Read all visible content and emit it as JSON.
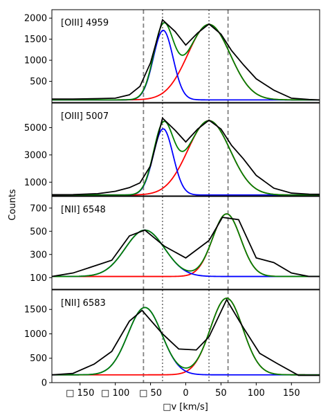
{
  "chart_data": {
    "type": "line",
    "x_label": "□v [km/s]",
    "y_label": "Counts",
    "xlim": [
      -190,
      190
    ],
    "x_ticks": [
      -150,
      -100,
      -50,
      0,
      50,
      100,
      150
    ],
    "x_tick_labels": [
      "□ 150",
      "□ 100",
      "□ 50",
      "0",
      "50",
      "100",
      "150"
    ],
    "vlines_dashed": [
      -60,
      60
    ],
    "vlines_dotted": [
      -33,
      33
    ],
    "series_colors": {
      "data": "#000000",
      "total": "#008000",
      "comp1": "#0000ff",
      "comp2": "#ff0000"
    },
    "panels": [
      {
        "label": "[OIII] 4959",
        "ylim": [
          0,
          2200
        ],
        "yticks": [
          500,
          1000,
          1500,
          2000
        ],
        "baseline": 60,
        "comp1": {
          "amp": 1650,
          "center": -32,
          "sigma": 14
        },
        "comp2": {
          "amp": 1790,
          "center": 33,
          "sigma": 30
        },
        "data": [
          [
            -190,
            80
          ],
          [
            -160,
            80
          ],
          [
            -125,
            90
          ],
          [
            -100,
            100
          ],
          [
            -80,
            180
          ],
          [
            -65,
            380
          ],
          [
            -50,
            940
          ],
          [
            -33,
            1960
          ],
          [
            -15,
            1680
          ],
          [
            0,
            1360
          ],
          [
            17,
            1650
          ],
          [
            33,
            1860
          ],
          [
            50,
            1620
          ],
          [
            65,
            1230
          ],
          [
            82,
            890
          ],
          [
            100,
            560
          ],
          [
            125,
            290
          ],
          [
            150,
            100
          ],
          [
            175,
            70
          ],
          [
            190,
            60
          ]
        ]
      },
      {
        "label": "[OIII] 5007",
        "ylim": [
          0,
          6800
        ],
        "yticks": [
          1000,
          3000,
          5000
        ],
        "baseline": 60,
        "comp1": {
          "amp": 4850,
          "center": -32,
          "sigma": 14
        },
        "comp2": {
          "amp": 5450,
          "center": 33,
          "sigma": 30
        },
        "data": [
          [
            -190,
            80
          ],
          [
            -160,
            90
          ],
          [
            -125,
            160
          ],
          [
            -100,
            330
          ],
          [
            -80,
            600
          ],
          [
            -65,
            950
          ],
          [
            -50,
            2200
          ],
          [
            -33,
            5700
          ],
          [
            -15,
            4800
          ],
          [
            0,
            3950
          ],
          [
            17,
            4900
          ],
          [
            33,
            5550
          ],
          [
            50,
            4900
          ],
          [
            65,
            3700
          ],
          [
            82,
            2700
          ],
          [
            100,
            1500
          ],
          [
            125,
            560
          ],
          [
            150,
            200
          ],
          [
            175,
            120
          ],
          [
            190,
            110
          ]
        ]
      },
      {
        "label": "[NII] 6548",
        "ylim": [
          0,
          800
        ],
        "yticks": [
          100,
          300,
          500,
          700
        ],
        "baseline": 110,
        "comp1": {
          "amp": 400,
          "center": -58,
          "sigma": 28
        },
        "comp2": {
          "amp": 540,
          "center": 58,
          "sigma": 20
        },
        "data": [
          [
            -190,
            110
          ],
          [
            -160,
            140
          ],
          [
            -130,
            200
          ],
          [
            -105,
            250
          ],
          [
            -80,
            460
          ],
          [
            -58,
            510
          ],
          [
            -30,
            370
          ],
          [
            0,
            270
          ],
          [
            33,
            420
          ],
          [
            52,
            620
          ],
          [
            75,
            600
          ],
          [
            100,
            270
          ],
          [
            125,
            230
          ],
          [
            150,
            140
          ],
          [
            175,
            110
          ],
          [
            190,
            110
          ]
        ]
      },
      {
        "label": "[NII] 6583",
        "ylim": [
          0,
          1900
        ],
        "yticks": [
          0,
          500,
          1000,
          1500
        ],
        "baseline": 160,
        "comp1": {
          "amp": 1380,
          "center": -58,
          "sigma": 24
        },
        "comp2": {
          "amp": 1570,
          "center": 58,
          "sigma": 23
        },
        "data": [
          [
            -190,
            160
          ],
          [
            -160,
            190
          ],
          [
            -130,
            380
          ],
          [
            -105,
            640
          ],
          [
            -80,
            1260
          ],
          [
            -62,
            1480
          ],
          [
            -33,
            1000
          ],
          [
            -10,
            690
          ],
          [
            15,
            670
          ],
          [
            33,
            940
          ],
          [
            58,
            1700
          ],
          [
            82,
            1120
          ],
          [
            105,
            600
          ],
          [
            130,
            390
          ],
          [
            160,
            150
          ],
          [
            190,
            150
          ]
        ]
      }
    ]
  }
}
